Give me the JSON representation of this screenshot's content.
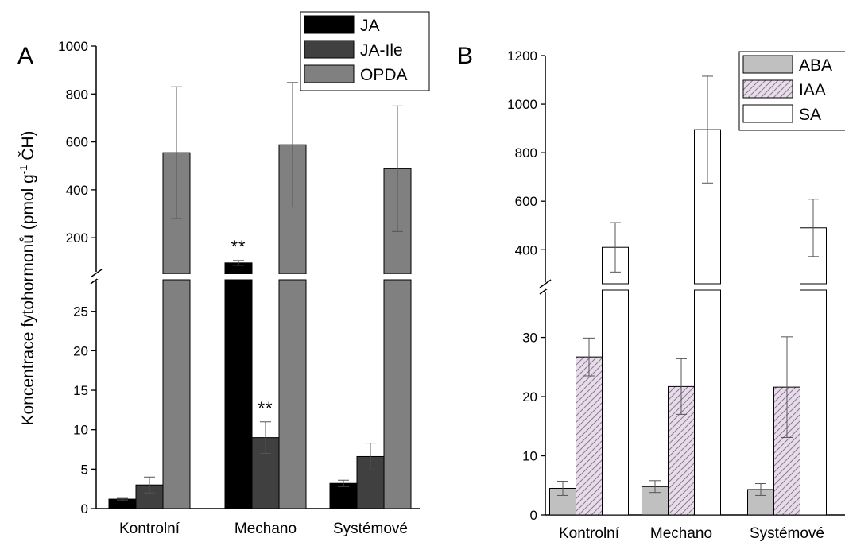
{
  "chart_data": [
    {
      "panel_label": "A",
      "type": "bar",
      "ylabel": "Koncentrace fytohormonů (pmol g⁻¹ ČH)",
      "ylabel_parts": {
        "main": "Koncentrace fytohormonů (pmol g",
        "sup": "-1",
        "tail": " ČH)"
      },
      "categories": [
        "Kontrolní",
        "Mechano",
        "Systémové"
      ],
      "axis_break": true,
      "lower_range": [
        0,
        29
      ],
      "lower_ticks": [
        0,
        5,
        10,
        15,
        20,
        25
      ],
      "upper_range": [
        48,
        1000
      ],
      "upper_ticks": [
        200,
        400,
        600,
        800,
        1000
      ],
      "series": [
        {
          "name": "JA",
          "color": "#000000",
          "pattern": "solid",
          "values": [
            1.2,
            95,
            3.2
          ],
          "errors": [
            0.1,
            10,
            0.4
          ]
        },
        {
          "name": "JA-Ile",
          "color": "#404040",
          "pattern": "solid",
          "values": [
            3.0,
            9.0,
            6.6
          ],
          "errors": [
            1.0,
            2.0,
            1.7
          ]
        },
        {
          "name": "OPDA",
          "color": "#808080",
          "pattern": "solid",
          "values": [
            555,
            588,
            488
          ],
          "errors": [
            275,
            260,
            262
          ]
        }
      ],
      "significance": [
        {
          "series": "JA",
          "category": "Mechano",
          "label": "**"
        },
        {
          "series": "JA-Ile",
          "category": "Mechano",
          "label": "**"
        }
      ],
      "legend_position": "top-right"
    },
    {
      "panel_label": "B",
      "type": "bar",
      "ylabel": "",
      "categories": [
        "Kontrolní",
        "Mechano",
        "Systémové"
      ],
      "axis_break": true,
      "lower_range": [
        0,
        38
      ],
      "lower_ticks": [
        0,
        10,
        20,
        30
      ],
      "upper_range": [
        260,
        1200
      ],
      "upper_ticks": [
        400,
        600,
        800,
        1000,
        1200
      ],
      "series": [
        {
          "name": "ABA",
          "color": "#c0c0c0",
          "pattern": "solid",
          "values": [
            4.5,
            4.8,
            4.3
          ],
          "errors": [
            1.2,
            1.0,
            1.0
          ]
        },
        {
          "name": "IAA",
          "color": "#e8dcea",
          "pattern": "hatched",
          "values": [
            26.7,
            21.7,
            21.6
          ],
          "errors": [
            3.2,
            4.7,
            8.5
          ]
        },
        {
          "name": "SA",
          "color": "#ffffff",
          "pattern": "solid",
          "values": [
            410,
            895,
            490
          ],
          "errors": [
            102,
            220,
            118
          ]
        }
      ],
      "legend_position": "top-right"
    }
  ]
}
